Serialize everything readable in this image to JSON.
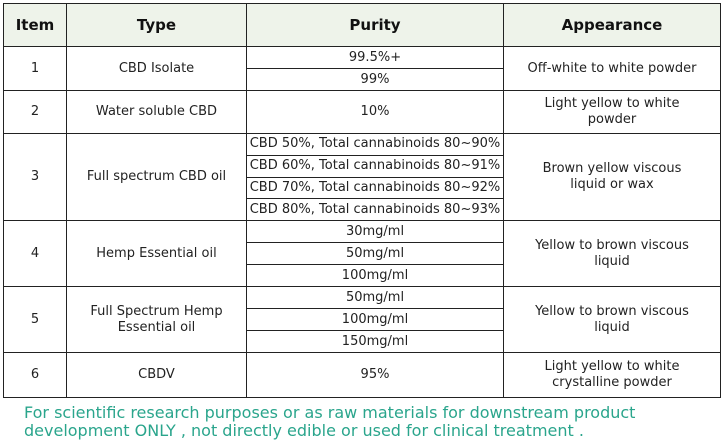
{
  "table": {
    "header": [
      "Item",
      "Type",
      "Purity",
      "Appearance"
    ],
    "rows": [
      {
        "item": "1",
        "type": "CBD Isolate",
        "purity": [
          "99.5%+",
          "99%"
        ],
        "appearance": "Off-white to white powder"
      },
      {
        "item": "2",
        "type": "Water soluble CBD",
        "purity": [
          "10%"
        ],
        "appearance": "Light yellow to white powder"
      },
      {
        "item": "3",
        "type": "Full spectrum CBD oil",
        "purity": [
          "CBD 50%, Total cannabinoids 80~90%",
          "CBD 60%, Total cannabinoids 80~91%",
          "CBD 70%, Total cannabinoids 80~92%",
          "CBD 80%, Total cannabinoids 80~93%"
        ],
        "appearance": "Brown yellow viscous liquid or wax"
      },
      {
        "item": "4",
        "type": "Hemp Essential oil",
        "purity": [
          "30mg/ml",
          "50mg/ml",
          "100mg/ml"
        ],
        "appearance": "Yellow to brown viscous liquid"
      },
      {
        "item": "5",
        "type": "Full Spectrum Hemp Essential oil",
        "purity": [
          "50mg/ml",
          "100mg/ml",
          "150mg/ml"
        ],
        "appearance": "Yellow to brown viscous liquid"
      },
      {
        "item": "6",
        "type": "CBDV",
        "purity": [
          "95%"
        ],
        "appearance": "Light yellow to white crystalline powder"
      }
    ]
  },
  "footer": [
    "For scientific research purposes or as raw materials for downstream product",
    "development ONLY , not directly edible or used for clinical treatment ."
  ]
}
